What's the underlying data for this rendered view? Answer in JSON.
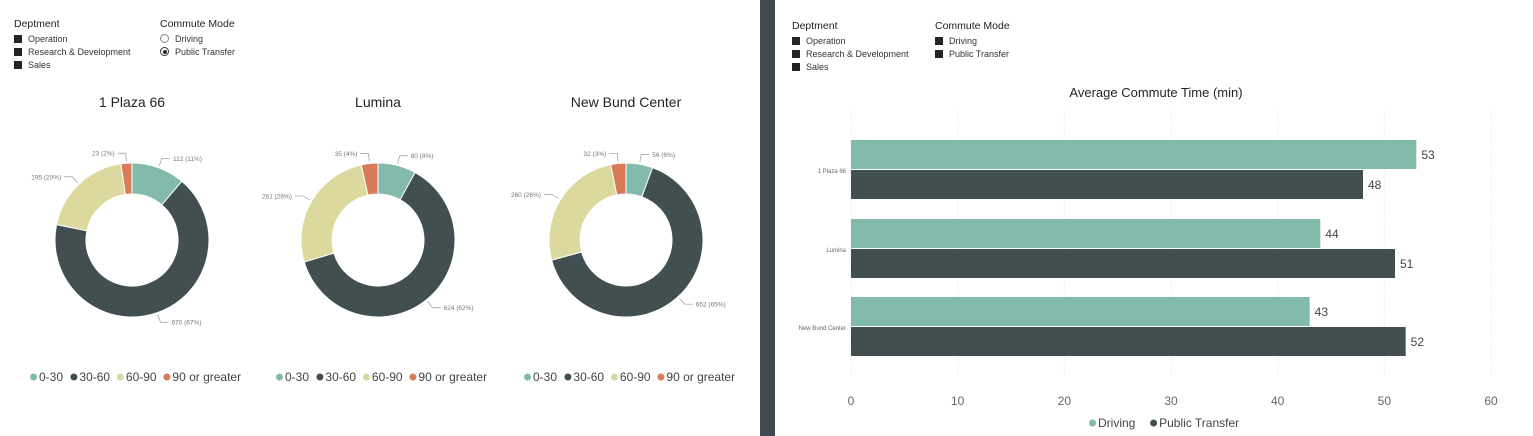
{
  "filters": {
    "dept_title": "Deptment",
    "dept_items": [
      "Operation",
      "Research & Development",
      "Sales"
    ],
    "mode_title": "Commute Mode",
    "mode_items": [
      "Driving",
      "Public Transfer"
    ],
    "left_mode_selected": "Public Transfer"
  },
  "colors": {
    "0-30": "#82bbac",
    "30-60": "#414f51",
    "60-90": "#dcd99e",
    "90 or greater": "#d97a58",
    "Driving": "#82bbac",
    "Public Transfer": "#414f51",
    "divider": "#3f4a4d"
  },
  "chart_data": [
    {
      "type": "pie",
      "title": "1 Plaza 66",
      "categories": [
        "0-30",
        "30-60",
        "60-90",
        "90 or greater"
      ],
      "values": [
        112,
        670,
        195,
        23
      ],
      "labels": [
        "112 (11%)",
        "670 (67%)",
        "195 (20%)",
        "23 (2%)"
      ],
      "legend": [
        "0-30",
        "30-60",
        "60-90",
        "90 or greater"
      ]
    },
    {
      "type": "pie",
      "title": "Lumina",
      "categories": [
        "0-30",
        "30-60",
        "60-90",
        "90 or greater"
      ],
      "values": [
        80,
        624,
        261,
        35
      ],
      "labels": [
        "80 (8%)",
        "624 (62%)",
        "261 (26%)",
        "35 (4%)"
      ],
      "legend": [
        "0-30",
        "30-60",
        "60-90",
        "90 or greater"
      ]
    },
    {
      "type": "pie",
      "title": "New Bund Center",
      "categories": [
        "0-30",
        "30-60",
        "60-90",
        "90 or greater"
      ],
      "values": [
        56,
        652,
        260,
        32
      ],
      "labels": [
        "56 (6%)",
        "652 (65%)",
        "260 (26%)",
        "32 (3%)"
      ],
      "legend": [
        "0-30",
        "30-60",
        "60-90",
        "90 or greater"
      ]
    },
    {
      "type": "bar",
      "orientation": "horizontal",
      "title": "Average Commute Time (min)",
      "categories": [
        "1 Plaza 66",
        "Lumina",
        "New Bund Center"
      ],
      "series": [
        {
          "name": "Driving",
          "values": [
            53,
            44,
            43
          ]
        },
        {
          "name": "Public Transfer",
          "values": [
            48,
            51,
            52
          ]
        }
      ],
      "xlim": [
        0,
        60
      ],
      "xticks": [
        0,
        10,
        20,
        30,
        40,
        50,
        60
      ],
      "grid": true,
      "legend_position": "bottom"
    }
  ]
}
